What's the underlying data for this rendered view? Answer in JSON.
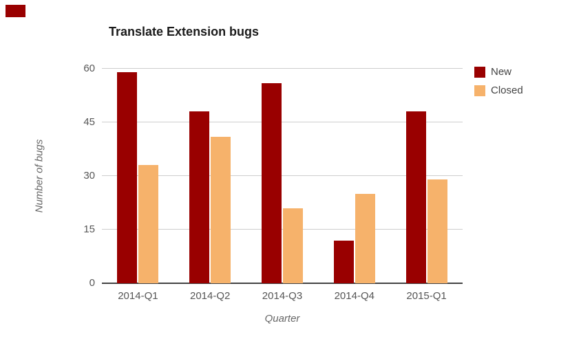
{
  "chart_data": {
    "type": "bar",
    "title": "Translate Extension bugs",
    "xlabel": "Quarter",
    "ylabel": "Number of bugs",
    "categories": [
      "2014-Q1",
      "2014-Q2",
      "2014-Q3",
      "2014-Q4",
      "2015-Q1"
    ],
    "series": [
      {
        "name": "New",
        "color": "#990000",
        "values": [
          59,
          48,
          56,
          12,
          48
        ]
      },
      {
        "name": "Closed",
        "color": "#f6b26b",
        "values": [
          33,
          41,
          21,
          25,
          29
        ]
      }
    ],
    "ylim": [
      0,
      60
    ],
    "yticks": [
      0,
      15,
      30,
      45,
      60
    ],
    "grid": true,
    "legend_position": "right",
    "gridline_color": "#cccccc",
    "baseline_color": "#424242"
  }
}
